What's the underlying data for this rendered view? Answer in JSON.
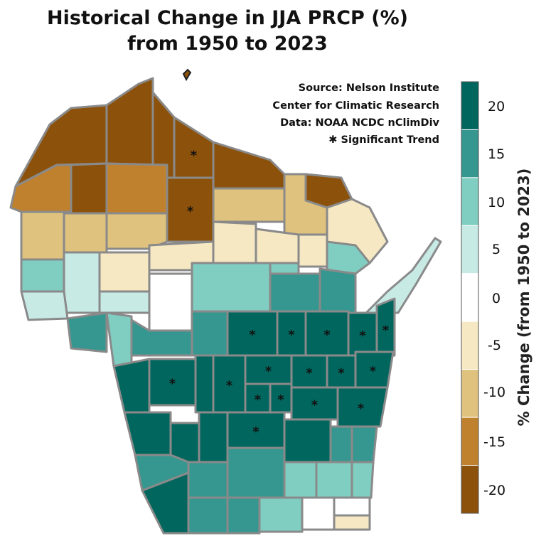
{
  "title": {
    "line1": "Historical Change in JJA PRCP (%)",
    "line2": "from 1950 to 2023"
  },
  "source": {
    "line1": "Source:  Nelson Institute",
    "line2": "Center for Climatic Research",
    "line3": "Data: NOAA NCDC nClimDiv",
    "line4": "✱ Significant Trend"
  },
  "colorbar": {
    "label": "% Change (from 1950 to 2023)",
    "ticks": [
      "20",
      "15",
      "10",
      "5",
      "0",
      "-5",
      "-10",
      "-15",
      "-20"
    ],
    "bins": [
      {
        "value": 20,
        "color": "#01665e"
      },
      {
        "value": 15,
        "color": "#35978f"
      },
      {
        "value": 10,
        "color": "#80cdc1"
      },
      {
        "value": 5,
        "color": "#c7eae5"
      },
      {
        "value": 0,
        "color": "#ffffff"
      },
      {
        "value": -5,
        "color": "#f6e8c3"
      },
      {
        "value": -10,
        "color": "#dfc27d"
      },
      {
        "value": -15,
        "color": "#bf812d"
      },
      {
        "value": -20,
        "color": "#8c510a"
      }
    ]
  },
  "chart_data": {
    "type": "choropleth",
    "title": "Historical Change in JJA PRCP (%) from 1950 to 2023",
    "region": "Wisconsin counties",
    "legend_label": "% Change (from 1950 to 2023)",
    "legend_placement": "right",
    "county_bins": [
      -20,
      -20,
      -20,
      -20,
      -20,
      -20,
      -15,
      -20,
      -15,
      -20,
      -10,
      -10,
      -5,
      -10,
      -10,
      -10,
      -5,
      -5,
      -5,
      -5,
      10,
      5,
      10,
      5,
      -5,
      5,
      5,
      0,
      10,
      15,
      10,
      15,
      15,
      10,
      15,
      15,
      20,
      20,
      20,
      20,
      20,
      20,
      20,
      20,
      20,
      20,
      20,
      20,
      20,
      20,
      20,
      20,
      20,
      20,
      20,
      20,
      20,
      20,
      15,
      15,
      15,
      20,
      15,
      15,
      10,
      10,
      10,
      15,
      15,
      10,
      0,
      0,
      -5
    ],
    "county_significant": [
      false,
      false,
      false,
      true,
      false,
      false,
      false,
      false,
      false,
      true,
      false,
      false,
      false,
      false,
      false,
      false,
      false,
      false,
      false,
      false,
      false,
      false,
      false,
      false,
      false,
      false,
      false,
      false,
      false,
      false,
      false,
      false,
      false,
      false,
      false,
      false,
      true,
      true,
      true,
      true,
      true,
      false,
      true,
      false,
      true,
      true,
      true,
      true,
      true,
      true,
      true,
      true,
      true,
      false,
      false,
      false,
      true,
      false,
      false,
      false,
      false,
      false,
      false,
      false,
      false,
      false,
      false,
      false,
      false,
      false,
      false,
      false,
      false
    ]
  }
}
